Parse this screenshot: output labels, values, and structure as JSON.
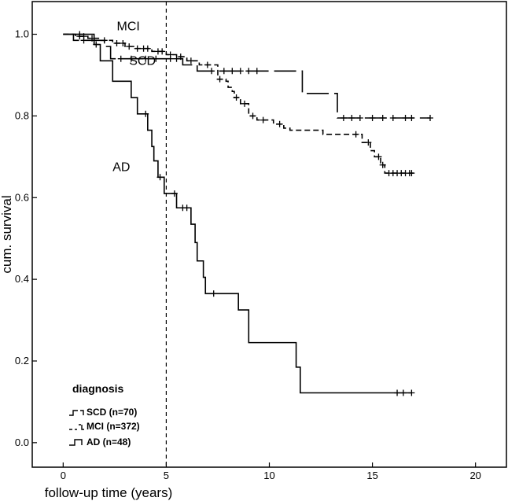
{
  "chart_data": {
    "type": "line",
    "subtype": "kaplan-meier step",
    "xlabel": "follow-up time (years)",
    "ylabel": "cum. survival",
    "xlim": [
      -1.5,
      21.5
    ],
    "ylim": [
      -0.06,
      1.08
    ],
    "xticks": [
      0,
      5,
      10,
      15,
      20
    ],
    "yticks": [
      0.0,
      0.2,
      0.4,
      0.6,
      0.8,
      1.0
    ],
    "xtick_labels": [
      "0",
      "5",
      "10",
      "15",
      "20"
    ],
    "ytick_labels": [
      "0.0",
      "0.2",
      "0.4",
      "0.6",
      "0.8",
      "1.0"
    ],
    "reference_line": {
      "x": 5,
      "style": "dashed"
    },
    "grid": false,
    "legend": {
      "title": "diagnosis",
      "position": "bottom-left",
      "entries": [
        "SCD (n=70)",
        "MCI (n=372)",
        "AD (n=48)"
      ]
    },
    "series": [
      {
        "name": "SCD",
        "style": "long-dash",
        "label": "SCD",
        "steps": [
          [
            0,
            1.0
          ],
          [
            0.5,
            0.985
          ],
          [
            2.0,
            0.97
          ],
          [
            2.3,
            0.94
          ],
          [
            5.8,
            0.925
          ],
          [
            6.5,
            0.91
          ],
          [
            11.6,
            0.855
          ],
          [
            13.3,
            0.795
          ],
          [
            17.8,
            0.795
          ]
        ],
        "censored": [
          [
            1.0,
            0.985
          ],
          [
            1.5,
            0.985
          ],
          [
            2.8,
            0.94
          ],
          [
            3.3,
            0.94
          ],
          [
            4.0,
            0.94
          ],
          [
            4.5,
            0.94
          ],
          [
            5.2,
            0.94
          ],
          [
            5.5,
            0.94
          ],
          [
            7.2,
            0.91
          ],
          [
            7.8,
            0.91
          ],
          [
            8.2,
            0.91
          ],
          [
            8.6,
            0.91
          ],
          [
            9.0,
            0.91
          ],
          [
            9.4,
            0.91
          ],
          [
            13.6,
            0.795
          ],
          [
            14.0,
            0.795
          ],
          [
            14.4,
            0.795
          ],
          [
            15.0,
            0.795
          ],
          [
            15.5,
            0.795
          ],
          [
            16.0,
            0.795
          ],
          [
            16.6,
            0.795
          ],
          [
            16.9,
            0.795
          ],
          [
            17.8,
            0.795
          ]
        ]
      },
      {
        "name": "MCI",
        "style": "short-dash",
        "label": "MCI",
        "steps": [
          [
            0,
            1.0
          ],
          [
            0.6,
            0.995
          ],
          [
            1.2,
            0.99
          ],
          [
            1.8,
            0.985
          ],
          [
            2.4,
            0.978
          ],
          [
            3.0,
            0.97
          ],
          [
            3.5,
            0.965
          ],
          [
            4.3,
            0.958
          ],
          [
            5.0,
            0.95
          ],
          [
            5.5,
            0.945
          ],
          [
            6.0,
            0.935
          ],
          [
            6.6,
            0.925
          ],
          [
            7.5,
            0.89
          ],
          [
            7.9,
            0.885
          ],
          [
            8.0,
            0.87
          ],
          [
            8.2,
            0.86
          ],
          [
            8.3,
            0.845
          ],
          [
            8.6,
            0.83
          ],
          [
            9.0,
            0.8
          ],
          [
            9.4,
            0.79
          ],
          [
            10.2,
            0.78
          ],
          [
            10.7,
            0.77
          ],
          [
            11.0,
            0.765
          ],
          [
            12.3,
            0.765
          ],
          [
            12.6,
            0.755
          ],
          [
            14.0,
            0.755
          ],
          [
            14.5,
            0.735
          ],
          [
            14.9,
            0.715
          ],
          [
            15.1,
            0.7
          ],
          [
            15.4,
            0.68
          ],
          [
            15.6,
            0.66
          ],
          [
            17.0,
            0.66
          ]
        ],
        "censored": [
          [
            0.8,
            0.995
          ],
          [
            1.0,
            0.995
          ],
          [
            1.4,
            0.99
          ],
          [
            2.0,
            0.985
          ],
          [
            2.6,
            0.978
          ],
          [
            2.9,
            0.978
          ],
          [
            3.2,
            0.97
          ],
          [
            3.6,
            0.965
          ],
          [
            3.9,
            0.965
          ],
          [
            4.1,
            0.965
          ],
          [
            4.6,
            0.958
          ],
          [
            4.8,
            0.958
          ],
          [
            5.2,
            0.95
          ],
          [
            5.7,
            0.945
          ],
          [
            6.2,
            0.935
          ],
          [
            7.0,
            0.925
          ],
          [
            7.6,
            0.89
          ],
          [
            8.4,
            0.845
          ],
          [
            8.8,
            0.83
          ],
          [
            9.2,
            0.8
          ],
          [
            9.7,
            0.79
          ],
          [
            10.5,
            0.78
          ],
          [
            14.2,
            0.755
          ],
          [
            14.8,
            0.735
          ],
          [
            15.3,
            0.7
          ],
          [
            15.5,
            0.68
          ],
          [
            15.8,
            0.66
          ],
          [
            16.0,
            0.66
          ],
          [
            16.2,
            0.66
          ],
          [
            16.4,
            0.66
          ],
          [
            16.6,
            0.66
          ],
          [
            16.8,
            0.66
          ],
          [
            16.9,
            0.66
          ]
        ]
      },
      {
        "name": "AD",
        "style": "solid",
        "label": "AD",
        "steps": [
          [
            0,
            1.0
          ],
          [
            1.5,
            0.975
          ],
          [
            1.8,
            0.935
          ],
          [
            2.4,
            0.885
          ],
          [
            3.3,
            0.845
          ],
          [
            3.6,
            0.805
          ],
          [
            4.1,
            0.765
          ],
          [
            4.3,
            0.725
          ],
          [
            4.4,
            0.69
          ],
          [
            4.6,
            0.65
          ],
          [
            4.9,
            0.61
          ],
          [
            5.5,
            0.575
          ],
          [
            6.2,
            0.535
          ],
          [
            6.4,
            0.49
          ],
          [
            6.5,
            0.445
          ],
          [
            6.8,
            0.405
          ],
          [
            6.9,
            0.365
          ],
          [
            8.5,
            0.325
          ],
          [
            9.0,
            0.245
          ],
          [
            11.3,
            0.185
          ],
          [
            11.5,
            0.122
          ],
          [
            16.9,
            0.122
          ]
        ],
        "censored": [
          [
            0.8,
            1.0
          ],
          [
            1.6,
            0.975
          ],
          [
            4.0,
            0.805
          ],
          [
            4.7,
            0.65
          ],
          [
            5.4,
            0.61
          ],
          [
            5.8,
            0.575
          ],
          [
            6.0,
            0.575
          ],
          [
            7.3,
            0.365
          ],
          [
            16.2,
            0.122
          ],
          [
            16.5,
            0.122
          ],
          [
            16.9,
            0.122
          ]
        ]
      }
    ],
    "annotations": [
      {
        "text": "MCI",
        "x": 2.6,
        "y": 1.01
      },
      {
        "text": "SCD",
        "x": 3.2,
        "y": 0.925
      },
      {
        "text": "AD",
        "x": 2.4,
        "y": 0.665
      }
    ]
  }
}
